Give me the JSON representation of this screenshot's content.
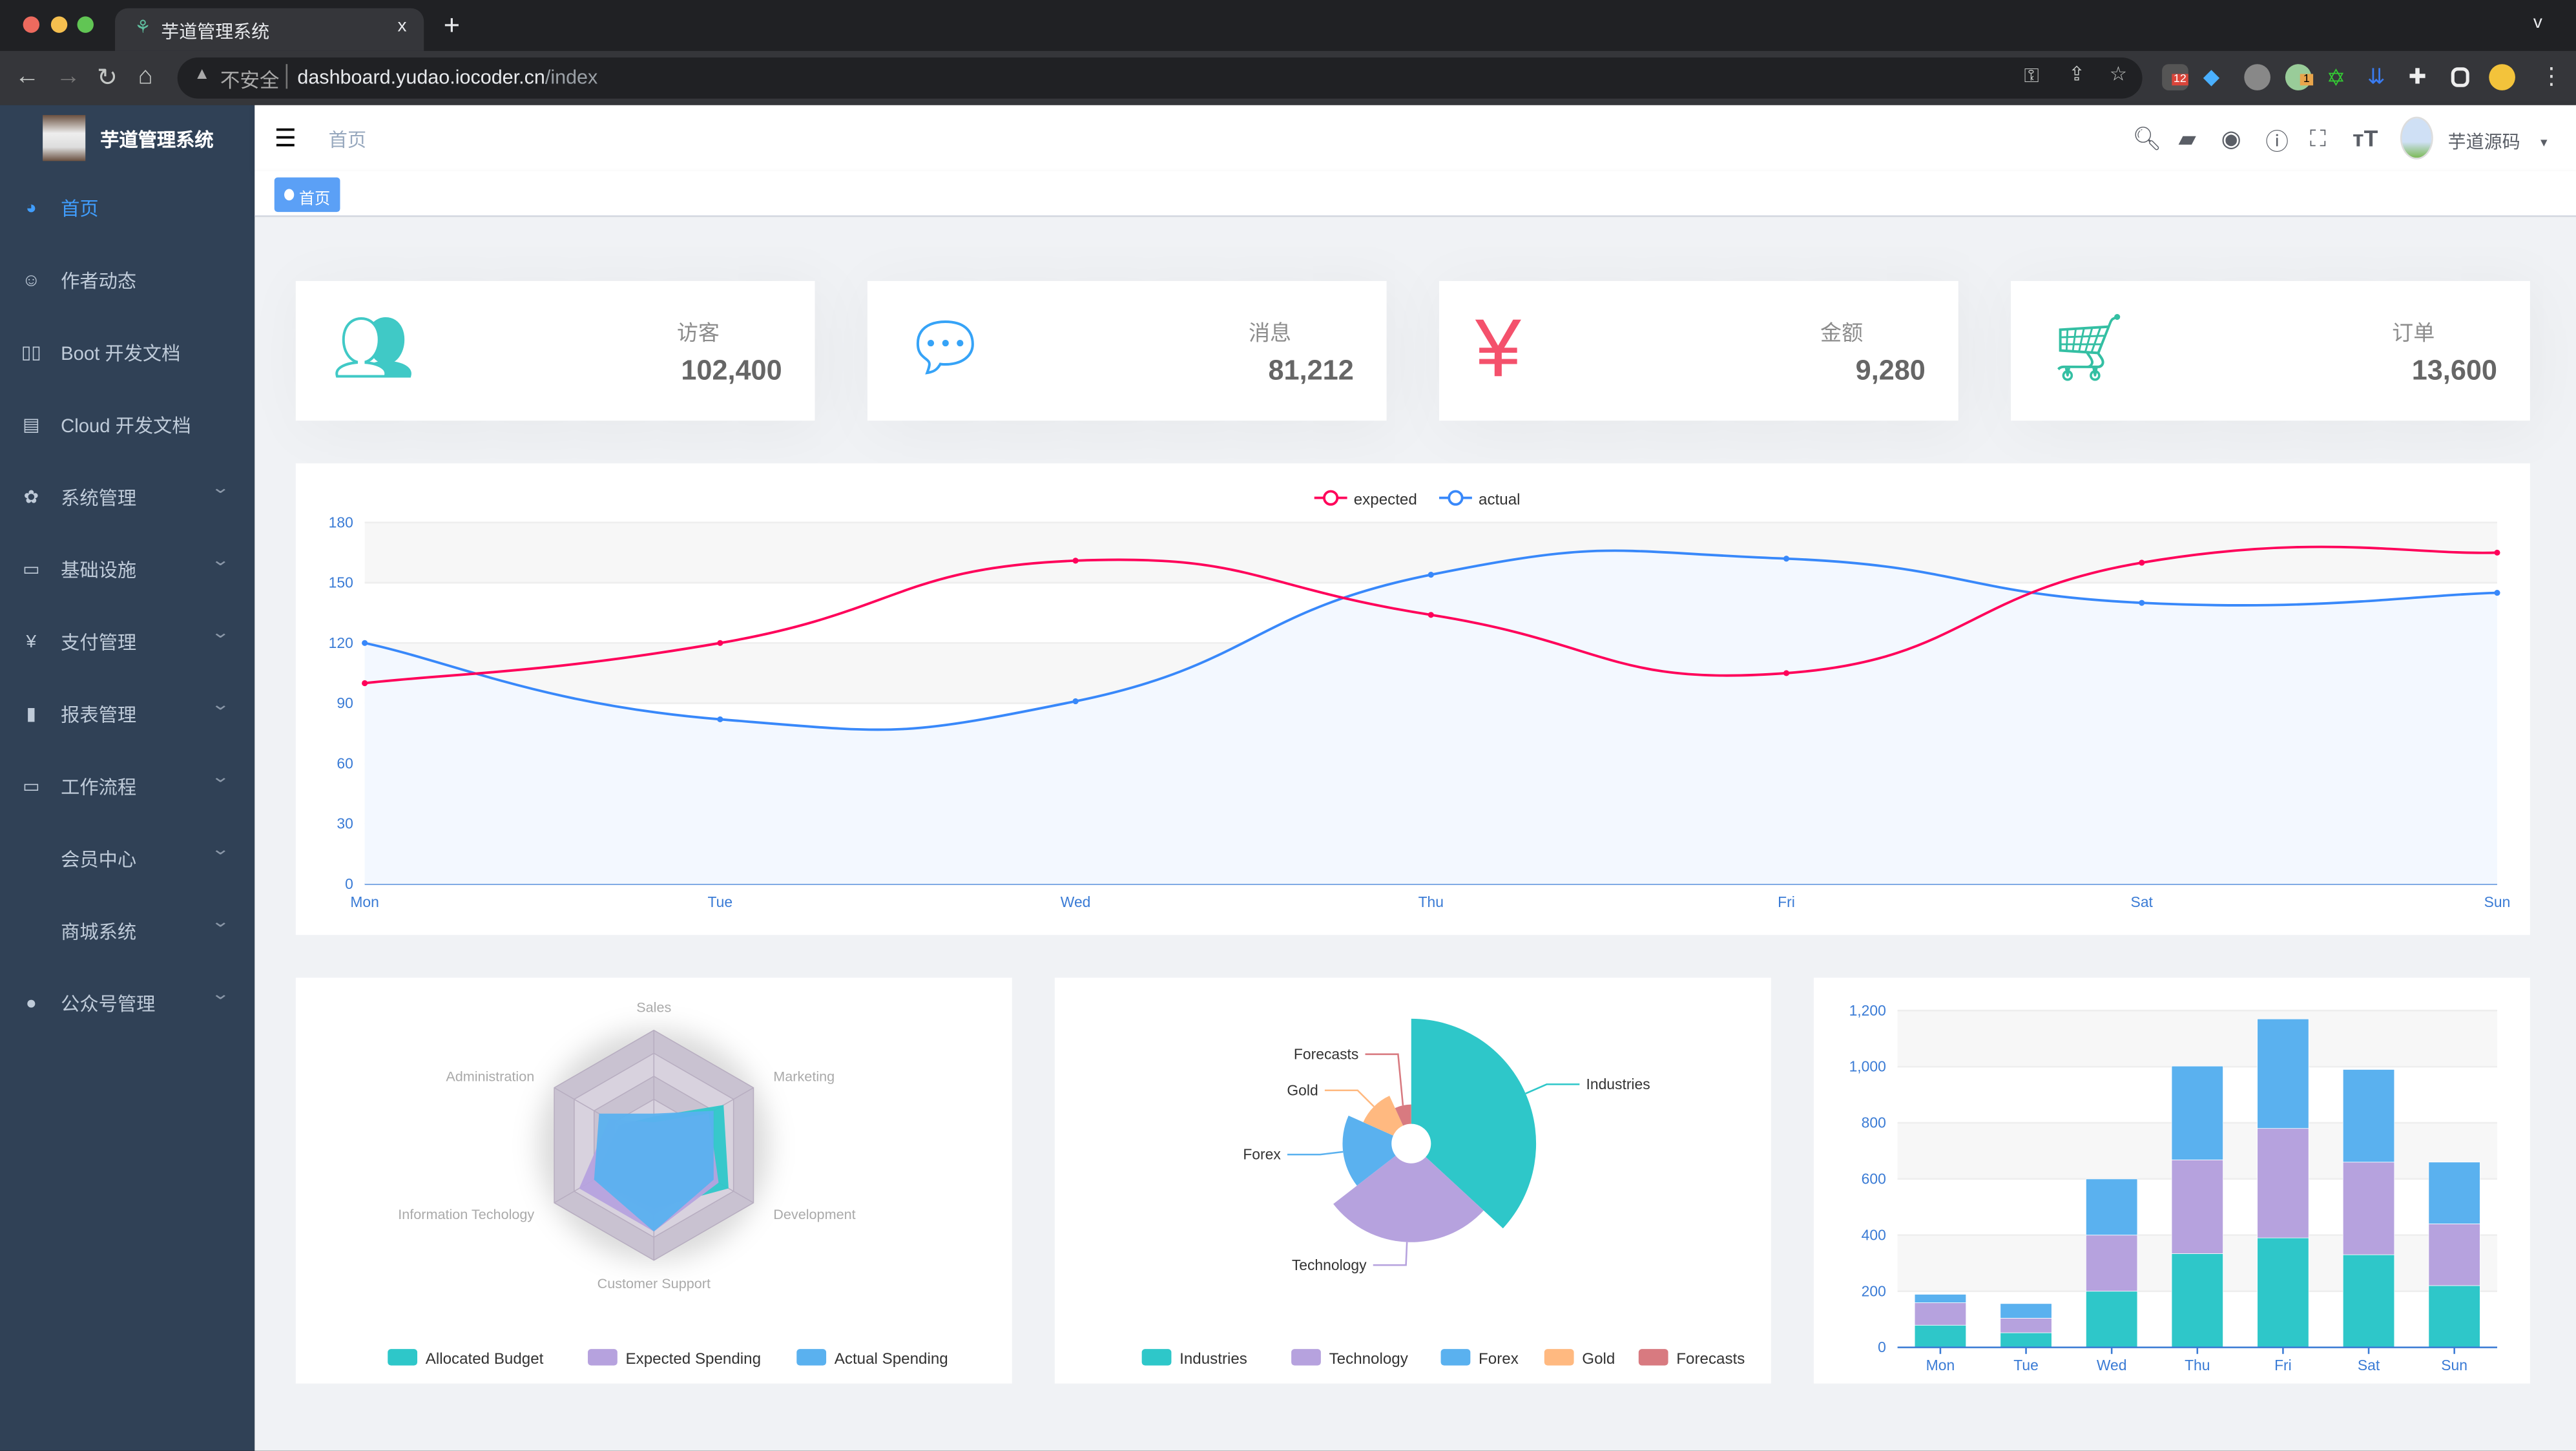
{
  "browser": {
    "tab_title": "芋道管理系统",
    "close": "x",
    "new_tab": "+",
    "insecure": "不安全",
    "url_host": "dashboard.yudao.iocoder.cn",
    "url_path": "/index",
    "ext_badges": [
      "12",
      "1"
    ],
    "tab_menu": "v"
  },
  "sidebar": {
    "logo_title": "芋道管理系统",
    "items": [
      {
        "label": "首页",
        "icon": "dashboard-icon",
        "active": true
      },
      {
        "label": "作者动态",
        "icon": "chat-face-icon"
      },
      {
        "label": "Boot 开发文档",
        "icon": "book-icon"
      },
      {
        "label": "Cloud 开发文档",
        "icon": "document-icon"
      },
      {
        "label": "系统管理",
        "icon": "gear-icon",
        "expand": true
      },
      {
        "label": "基础设施",
        "icon": "monitor-icon",
        "expand": true
      },
      {
        "label": "支付管理",
        "icon": "yen-icon",
        "expand": true
      },
      {
        "label": "报表管理",
        "icon": "bar-chart-icon",
        "expand": true
      },
      {
        "label": "工作流程",
        "icon": "briefcase-icon",
        "expand": true
      },
      {
        "label": "会员中心",
        "icon": "",
        "expand": true
      },
      {
        "label": "商城系统",
        "icon": "",
        "expand": true
      },
      {
        "label": "公众号管理",
        "icon": "wechat-icon",
        "expand": true
      }
    ],
    "active_color": "#409eff"
  },
  "navbar": {
    "breadcrumb": "首页",
    "user": "芋道源码"
  },
  "tags": {
    "active": "首页"
  },
  "panels": [
    {
      "title": "访客",
      "value": "102,400",
      "icon": "peoples-icon",
      "color": "#40c9c6"
    },
    {
      "title": "消息",
      "value": "81,212",
      "icon": "message-icon",
      "color": "#36a3f7"
    },
    {
      "title": "金额",
      "value": "9,280",
      "icon": "money-icon",
      "color": "#f4516c"
    },
    {
      "title": "订单",
      "value": "13,600",
      "icon": "shopping-cart-icon",
      "color": "#34bfa3"
    }
  ],
  "chart_data": [
    {
      "type": "line",
      "categories": [
        "Mon",
        "Tue",
        "Wed",
        "Thu",
        "Fri",
        "Sat",
        "Sun"
      ],
      "series": [
        {
          "name": "expected",
          "values": [
            100,
            120,
            161,
            134,
            105,
            160,
            165
          ],
          "color": "#FF005A"
        },
        {
          "name": "actual",
          "values": [
            120,
            82,
            91,
            154,
            162,
            140,
            145
          ],
          "color": "#3888fa",
          "area": true
        }
      ],
      "ylim": [
        0,
        180
      ],
      "yticks": [
        0,
        30,
        60,
        90,
        120,
        150,
        180
      ],
      "legend": "top",
      "smooth": true
    },
    {
      "type": "radar",
      "indicators": [
        "Sales",
        "Administration",
        "Information Techology",
        "Customer Support",
        "Development",
        "Marketing"
      ],
      "max": 20000,
      "series": [
        {
          "name": "Allocated Budget",
          "values": [
            5000,
            7000,
            12000,
            11000,
            15000,
            14000
          ],
          "color": "#2ec7c9"
        },
        {
          "name": "Expected Spending",
          "values": [
            4000,
            9000,
            15000,
            15000,
            13000,
            11000
          ],
          "color": "#b6a2de"
        },
        {
          "name": "Actual Spending",
          "values": [
            5500,
            11000,
            12000,
            15000,
            12000,
            12000
          ],
          "color": "#5ab1ef"
        }
      ],
      "legend": "bottom"
    },
    {
      "type": "pie",
      "rose": "radius",
      "slices": [
        {
          "name": "Industries",
          "value": 320,
          "color": "#2ec7c9"
        },
        {
          "name": "Technology",
          "value": 240,
          "color": "#b6a2de"
        },
        {
          "name": "Forex",
          "value": 149,
          "color": "#5ab1ef"
        },
        {
          "name": "Gold",
          "value": 100,
          "color": "#ffb980"
        },
        {
          "name": "Forecasts",
          "value": 59,
          "color": "#d87a80"
        }
      ],
      "legend": "bottom"
    },
    {
      "type": "bar",
      "stacked": true,
      "categories": [
        "Mon",
        "Tue",
        "Wed",
        "Thu",
        "Fri",
        "Sat",
        "Sun"
      ],
      "series": [
        {
          "values": [
            79,
            52,
            200,
            334,
            390,
            330,
            220
          ],
          "color": "#2ec7c9"
        },
        {
          "values": [
            80,
            52,
            200,
            334,
            390,
            330,
            220
          ],
          "color": "#b6a2de"
        },
        {
          "values": [
            30,
            52,
            200,
            334,
            390,
            330,
            220
          ],
          "color": "#5ab1ef"
        }
      ],
      "ylim": [
        0,
        1200
      ],
      "yticks": [
        "0",
        "200",
        "400",
        "600",
        "800",
        "1,000",
        "1,200"
      ]
    }
  ]
}
